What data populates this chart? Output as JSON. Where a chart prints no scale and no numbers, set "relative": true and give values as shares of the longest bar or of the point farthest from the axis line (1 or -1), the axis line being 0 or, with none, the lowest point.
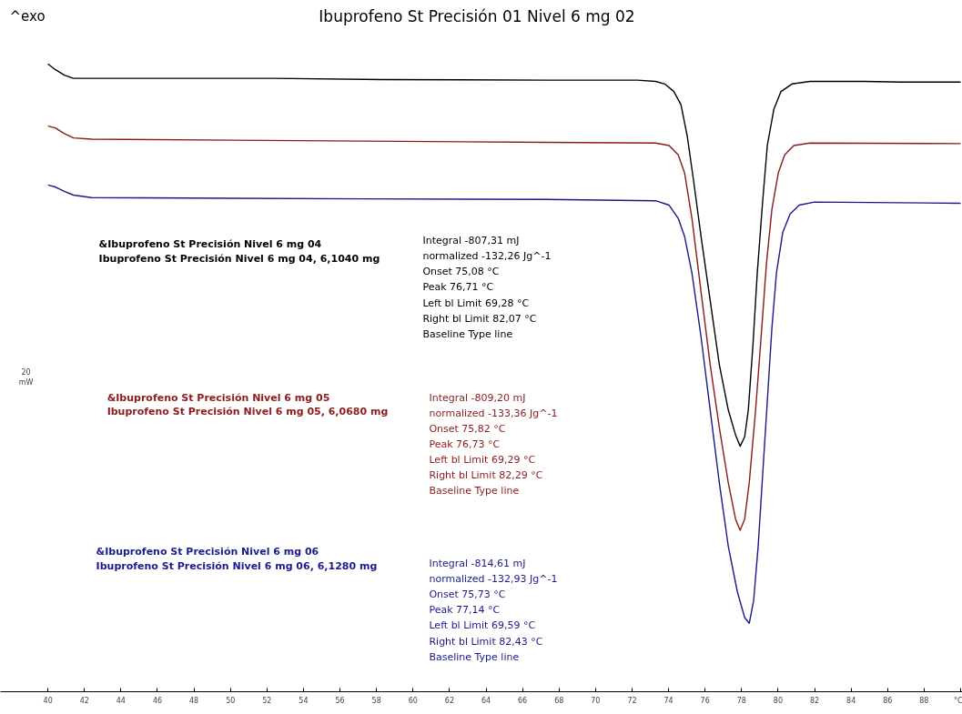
{
  "chart_data": {
    "type": "line",
    "relative": true,
    "title": "Ibuprofeno St Precisión 01 Nivel 6 mg 02",
    "xlim": [
      37.4,
      90.1
    ],
    "xticks": [
      40,
      42,
      44,
      46,
      48,
      50,
      52,
      54,
      56,
      58,
      60,
      62,
      64,
      66,
      68,
      70,
      72,
      74,
      76,
      78,
      80,
      82,
      84,
      86,
      88,
      {
        "value": 90,
        "label": "°C"
      }
    ],
    "grid": false,
    "marker": "none",
    "line_style": "solid",
    "series": [
      {
        "color": "#000000",
        "x": [
          40,
          40.4,
          40.9,
          41.4,
          42.39,
          52.36,
          58.34,
          67.3,
          72.29,
          73.29,
          73.79,
          74.29,
          74.68,
          75.03,
          75.38,
          75.78,
          76.28,
          76.78,
          77.27,
          77.67,
          77.92,
          78.17,
          78.37,
          78.62,
          78.86,
          79.16,
          79.41,
          79.77,
          80.16,
          80.76,
          81.75,
          84.74,
          86.74,
          90
        ],
        "values": [
          1.0,
          0.991,
          0.982,
          0.977,
          0.977,
          0.977,
          0.975,
          0.974,
          0.974,
          0.972,
          0.968,
          0.956,
          0.935,
          0.884,
          0.812,
          0.725,
          0.623,
          0.521,
          0.449,
          0.409,
          0.391,
          0.406,
          0.449,
          0.551,
          0.667,
          0.783,
          0.87,
          0.928,
          0.956,
          0.968,
          0.972,
          0.972,
          0.971,
          0.971
        ]
      },
      {
        "color": "#8b1a1a",
        "x": [
          40,
          40.4,
          40.9,
          41.4,
          42.39,
          57.34,
          67.3,
          73.29,
          74.03,
          74.53,
          74.88,
          75.28,
          75.78,
          76.28,
          76.78,
          77.27,
          77.67,
          77.92,
          78.17,
          78.42,
          78.77,
          79.07,
          79.36,
          79.66,
          80.01,
          80.36,
          80.86,
          81.75,
          90
        ],
        "values": [
          0.901,
          0.898,
          0.889,
          0.882,
          0.88,
          0.877,
          0.875,
          0.874,
          0.87,
          0.855,
          0.826,
          0.754,
          0.637,
          0.521,
          0.421,
          0.333,
          0.275,
          0.257,
          0.275,
          0.333,
          0.449,
          0.565,
          0.681,
          0.768,
          0.826,
          0.855,
          0.87,
          0.874,
          0.873
        ]
      },
      {
        "color": "#1a1a8b",
        "x": [
          40,
          40.4,
          40.9,
          41.4,
          42.39,
          57.34,
          67.3,
          73.29,
          74.03,
          74.53,
          74.88,
          75.28,
          75.78,
          76.28,
          76.78,
          77.27,
          77.77,
          78.17,
          78.42,
          78.66,
          78.91,
          79.16,
          79.41,
          79.66,
          79.91,
          80.26,
          80.66,
          81.16,
          82.0,
          90
        ],
        "values": [
          0.807,
          0.804,
          0.797,
          0.791,
          0.787,
          0.785,
          0.784,
          0.782,
          0.775,
          0.754,
          0.725,
          0.667,
          0.565,
          0.449,
          0.333,
          0.232,
          0.159,
          0.118,
          0.109,
          0.145,
          0.232,
          0.348,
          0.463,
          0.579,
          0.667,
          0.732,
          0.761,
          0.775,
          0.78,
          0.778
        ]
      }
    ],
    "annotations": [
      "^exo",
      "20 mW",
      "&Ibuprofeno St Precisión Nivel 6 mg 04\nIbuprofeno St Precisión Nivel 6 mg 04, 6,1040 mg",
      "Integral          -807,31 mJ\n  normalized    -132,26 Jg^-1\nOnset              75,08 °C\nPeak                76,71 °C\nLeft bl Limit     69,28 °C\nRight bl Limit   82,07 °C\nBaseline Type  line",
      "&Ibuprofeno St Precisión Nivel 6 mg 05\nIbuprofeno St Precisión Nivel 6 mg 05, 6,0680 mg",
      "Integral          -809,20 mJ\n  normalized    -133,36 Jg^-1\nOnset              75,82 °C\nPeak                76,73 °C\nLeft bl Limit     69,29 °C\nRight bl Limit   82,29 °C\nBaseline Type  line",
      "&Ibuprofeno St Precisión Nivel 6 mg 06\nIbuprofeno St Precisión Nivel 6 mg 06, 6,1280 mg",
      "Integral          -814,61 mJ\n  normalized    -132,93 Jg^-1\nOnset              75,73 °C\nPeak                77,14 °C\nLeft bl Limit     69,59 °C\nRight bl Limit   82,43 °C\nBaseline Type  line"
    ]
  }
}
